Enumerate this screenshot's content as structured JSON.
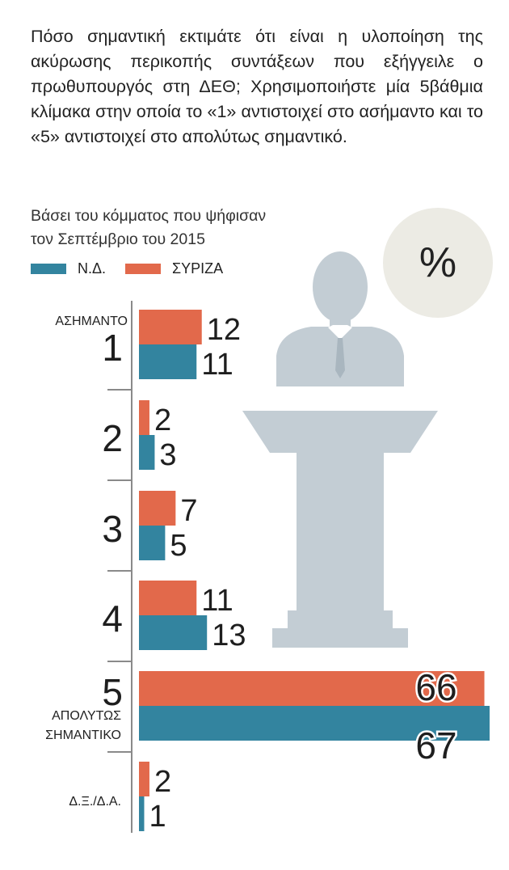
{
  "question": "Πόσο σημαντική εκτιμάτε ότι είναι η υλοποίηση της ακύρωσης περικοπής συντάξεων που εξήγγειλε ο πρωθυπουργός στη ΔΕΘ; Χρησιμοποιήστε μία 5βάθμια κλίμακα στην οποία το «1» αντιστοιχεί στο ασήμαντο και το «5» αντιστοιχεί στο απολύτως σημαντικό.",
  "subtitle_line1": "Βάσει του κόμματος που ψήφισαν",
  "subtitle_line2": "τον Σεπτέμβριο του 2015",
  "unit": "%",
  "chart_data": {
    "type": "bar",
    "orientation": "horizontal",
    "categories": [
      "1",
      "2",
      "3",
      "4",
      "5",
      "Δ.Ξ./Δ.Α."
    ],
    "category_notes": {
      "1": "ΑΣΗΜΑΝΤΟ",
      "5": "ΑΠΟΛΥΤΩΣ ΣΗΜΑΝΤΙΚΟ"
    },
    "series": [
      {
        "name": "ΣΥΡΙΖΑ",
        "color": "#e2694b",
        "values": [
          12,
          2,
          7,
          11,
          66,
          2
        ]
      },
      {
        "name": "Ν.Δ.",
        "color": "#33849f",
        "values": [
          11,
          3,
          5,
          13,
          67,
          1
        ]
      }
    ],
    "xlim": [
      0,
      67
    ],
    "grid": false,
    "legend_position": "top-left",
    "data_labels": true,
    "background_icon": "podium-speaker-icon"
  }
}
